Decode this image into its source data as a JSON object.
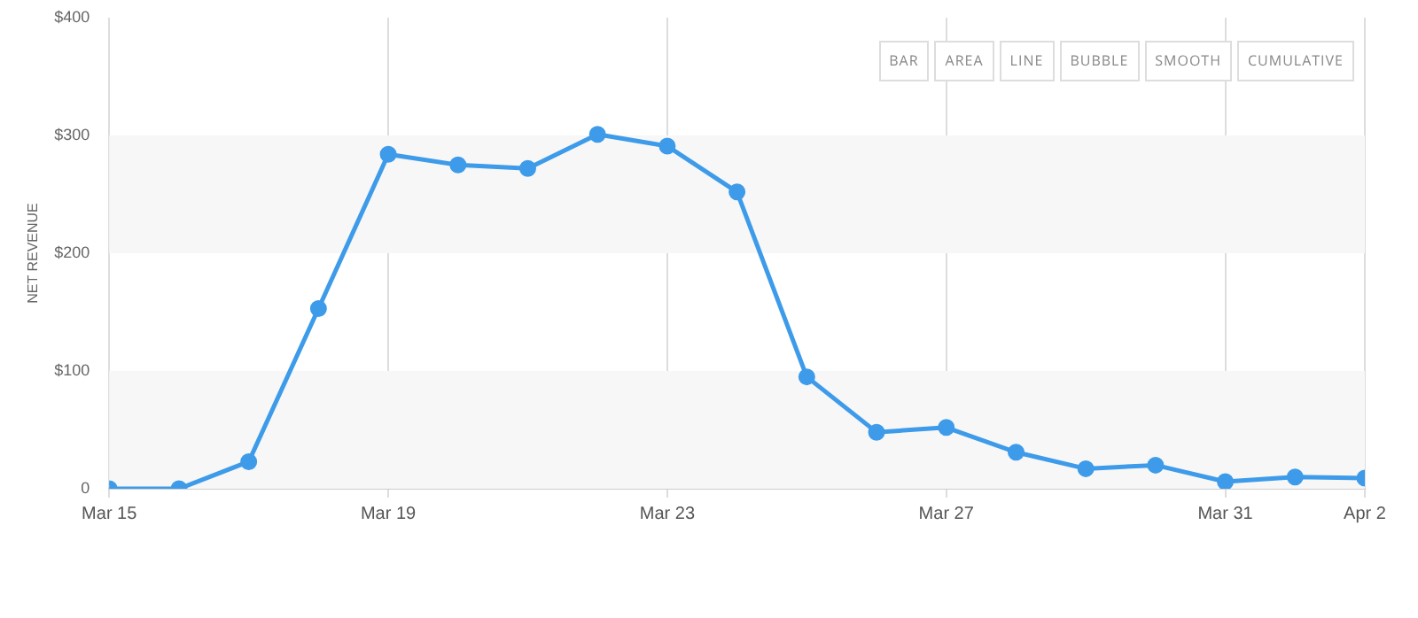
{
  "chart_data": {
    "type": "line",
    "ylabel": "NET REVENUE",
    "x": [
      "--03-15",
      "--03-16",
      "--03-17",
      "--03-18",
      "--03-19",
      "--03-20",
      "--03-21",
      "--03-22",
      "--03-23",
      "--03-24",
      "--03-25",
      "--03-26",
      "--03-27",
      "--03-28",
      "--03-29",
      "--03-30",
      "--03-31",
      "--04-01",
      "--04-02"
    ],
    "series": [
      {
        "color": "#3d9be9",
        "values": [
          0,
          0,
          23,
          153,
          284,
          275,
          272,
          301,
          291,
          252,
          95,
          48,
          52,
          31,
          17,
          20,
          6,
          10,
          9
        ]
      }
    ],
    "xlim": [
      "--03-15",
      "--04-02"
    ],
    "xticks": [
      {
        "value": "--03-15",
        "label": "Mar 15"
      },
      {
        "value": "--03-19",
        "label": "Mar 19"
      },
      {
        "value": "--03-23",
        "label": "Mar 23"
      },
      {
        "value": "--03-27",
        "label": "Mar 27"
      },
      {
        "value": "--03-31",
        "label": "Mar 31"
      },
      {
        "value": "--04-02",
        "label": "Apr 2"
      }
    ],
    "ylim": [
      0,
      400
    ],
    "yticks": [
      {
        "value": 0,
        "label": "0"
      },
      {
        "value": 100,
        "label": "$100"
      },
      {
        "value": 200,
        "label": "$200"
      },
      {
        "value": 300,
        "label": "$300"
      },
      {
        "value": 400,
        "label": "$400"
      }
    ],
    "bands": [
      {
        "axis": "y",
        "from": 0,
        "to": 100,
        "color": "#f7f7f7"
      },
      {
        "axis": "y",
        "from": 200,
        "to": 300,
        "color": "#f7f7f7"
      }
    ],
    "grid": "x",
    "marker": "circle",
    "line_style": "solid",
    "legend": false,
    "annotations": [
      "BAR",
      "AREA",
      "LINE",
      "BUBBLE",
      "SMOOTH",
      "CUMULATIVE"
    ]
  }
}
